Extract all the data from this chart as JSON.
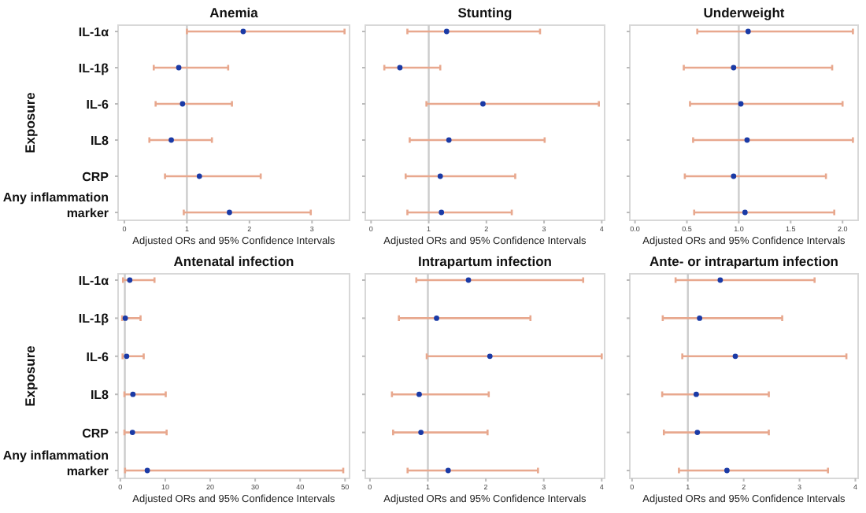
{
  "chart_data": [
    {
      "type": "scatter",
      "title": "Anemia",
      "xlabel": "Adjusted ORs and 95% Confidence Intervals",
      "ylabel": "Exposure",
      "orientation": "horizontal",
      "categories": [
        "IL-1α",
        "IL-1β",
        "IL-6",
        "IL8",
        "CRP",
        "Any inflammation marker"
      ],
      "xlim": [
        -0.1,
        3.6
      ],
      "xticks": [
        0,
        1,
        2,
        3
      ],
      "marker": "circle",
      "grid": false,
      "ref_lines": [
        {
          "axis": "x",
          "value": 1,
          "color": "#cccccc"
        }
      ],
      "series": [
        {
          "color": "#1a3aa6",
          "values": [
            1.9,
            0.87,
            0.93,
            0.75,
            1.2,
            1.68
          ],
          "errors": [
            [
              1.0,
              3.52
            ],
            [
              0.47,
              1.66
            ],
            [
              0.5,
              1.72
            ],
            [
              0.4,
              1.4
            ],
            [
              0.65,
              2.18
            ],
            [
              0.95,
              2.98
            ]
          ]
        }
      ]
    },
    {
      "type": "scatter",
      "title": "Stunting",
      "xlabel": "Adjusted ORs and 95% Confidence Intervals",
      "orientation": "horizontal",
      "categories": [
        null,
        null,
        null,
        null,
        null,
        null
      ],
      "xlim": [
        -0.1,
        4.05
      ],
      "xticks": [
        0,
        1,
        2,
        3,
        4
      ],
      "marker": "circle",
      "grid": false,
      "ref_lines": [
        {
          "axis": "x",
          "value": 1,
          "color": "#cccccc"
        }
      ],
      "series": [
        {
          "color": "#1a3aa6",
          "values": [
            1.31,
            0.5,
            1.94,
            1.35,
            1.2,
            1.22
          ],
          "errors": [
            [
              0.63,
              2.93
            ],
            [
              0.23,
              1.2
            ],
            [
              0.96,
              3.95
            ],
            [
              0.67,
              3.01
            ],
            [
              0.6,
              2.5
            ],
            [
              0.63,
              2.44
            ]
          ]
        }
      ]
    },
    {
      "type": "scatter",
      "title": "Underweight",
      "xlabel": "Adjusted ORs and 95% Confidence Intervals",
      "orientation": "horizontal",
      "categories": [
        null,
        null,
        null,
        null,
        null,
        null
      ],
      "xlim": [
        -0.05,
        2.15
      ],
      "xticks": [
        {
          "value": 0,
          "label": "0.0"
        },
        {
          "value": 0.5,
          "label": "0.5"
        },
        {
          "value": 1,
          "label": "1.0"
        },
        {
          "value": 1.5,
          "label": "1.5"
        },
        {
          "value": 2,
          "label": "2.0"
        }
      ],
      "marker": "circle",
      "grid": false,
      "ref_lines": [
        {
          "axis": "x",
          "value": 1,
          "color": "#cccccc"
        }
      ],
      "series": [
        {
          "color": "#1a3aa6",
          "values": [
            1.09,
            0.95,
            1.02,
            1.08,
            0.95,
            1.06
          ],
          "errors": [
            [
              0.6,
              2.1
            ],
            [
              0.47,
              1.9
            ],
            [
              0.53,
              2.0
            ],
            [
              0.56,
              2.1
            ],
            [
              0.48,
              1.84
            ],
            [
              0.57,
              1.92
            ]
          ]
        }
      ]
    },
    {
      "type": "scatter",
      "title": "Antenatal infection",
      "xlabel": "Adjusted ORs and 95% Confidence Intervals",
      "ylabel": "Exposure",
      "orientation": "horizontal",
      "categories": [
        "IL-1α",
        "IL-1β",
        "IL-6",
        "IL8",
        "CRP",
        "Any inflammation marker"
      ],
      "xlim": [
        -0.5,
        51
      ],
      "xticks": [
        0,
        10,
        20,
        30,
        40,
        50
      ],
      "marker": "circle",
      "grid": false,
      "ref_lines": [
        {
          "axis": "x",
          "value": 1,
          "color": "#cccccc"
        }
      ],
      "series": [
        {
          "color": "#1a3aa6",
          "values": [
            2.1,
            1.1,
            1.4,
            2.8,
            2.7,
            6.0
          ],
          "errors": [
            [
              0.6,
              7.6
            ],
            [
              0.4,
              4.5
            ],
            [
              0.5,
              5.2
            ],
            [
              0.9,
              10.1
            ],
            [
              0.9,
              10.3
            ],
            [
              1.05,
              49.6
            ]
          ]
        }
      ]
    },
    {
      "type": "scatter",
      "title": "Intrapartum infection",
      "xlabel": "Adjusted ORs and 95% Confidence Intervals",
      "orientation": "horizontal",
      "categories": [
        null,
        null,
        null,
        null,
        null,
        null
      ],
      "xlim": [
        -0.08,
        4.05
      ],
      "xticks": [
        0,
        1,
        2,
        3,
        4
      ],
      "marker": "circle",
      "grid": false,
      "ref_lines": [
        {
          "axis": "x",
          "value": 1,
          "color": "#cccccc"
        }
      ],
      "series": [
        {
          "color": "#1a3aa6",
          "values": [
            1.7,
            1.15,
            2.07,
            0.85,
            0.88,
            1.35
          ],
          "errors": [
            [
              0.8,
              3.68
            ],
            [
              0.5,
              2.77
            ],
            [
              0.98,
              4.0
            ],
            [
              0.38,
              2.05
            ],
            [
              0.4,
              2.03
            ],
            [
              0.65,
              2.9
            ]
          ]
        }
      ]
    },
    {
      "type": "scatter",
      "title": "Ante- or intrapartum infection",
      "xlabel": "Adjusted ORs and 95% Confidence Intervals",
      "orientation": "horizontal",
      "categories": [
        null,
        null,
        null,
        null,
        null,
        null
      ],
      "xlim": [
        -0.04,
        4.05
      ],
      "xticks": [
        0,
        1,
        2,
        3,
        4
      ],
      "marker": "circle",
      "grid": false,
      "ref_lines": [
        {
          "axis": "x",
          "value": 1,
          "color": "#cccccc"
        }
      ],
      "series": [
        {
          "color": "#1a3aa6",
          "values": [
            1.58,
            1.21,
            1.85,
            1.15,
            1.17,
            1.7
          ],
          "errors": [
            [
              0.78,
              3.27
            ],
            [
              0.55,
              2.69
            ],
            [
              0.9,
              3.84
            ],
            [
              0.54,
              2.45
            ],
            [
              0.57,
              2.45
            ],
            [
              0.84,
              3.51
            ]
          ]
        }
      ]
    }
  ]
}
